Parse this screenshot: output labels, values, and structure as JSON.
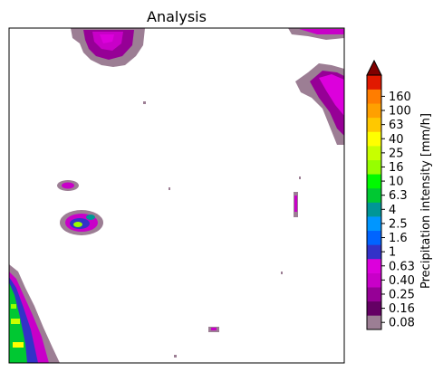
{
  "chart_data": {
    "type": "heatmap",
    "title": "Analysis",
    "colorbar": {
      "label": "Precipitation intensity [mm/h]",
      "ticks": [
        "0.08",
        "0.16",
        "0.25",
        "0.40",
        "0.63",
        "1",
        "1.6",
        "2.5",
        "4",
        "6.3",
        "10",
        "16",
        "25",
        "40",
        "63",
        "100",
        "160"
      ],
      "colors": [
        "#9c7e94",
        "#640064",
        "#960096",
        "#c800c8",
        "#dc00dc",
        "#3232c8",
        "#0064ff",
        "#0096ff",
        "#009696",
        "#00c832",
        "#00fa00",
        "#96ff00",
        "#c8ff00",
        "#ffff00",
        "#ffc800",
        "#ffa000",
        "#ff7d00",
        "#e11900"
      ],
      "extend_color": "#800000",
      "extend": "max"
    },
    "grid": false
  }
}
